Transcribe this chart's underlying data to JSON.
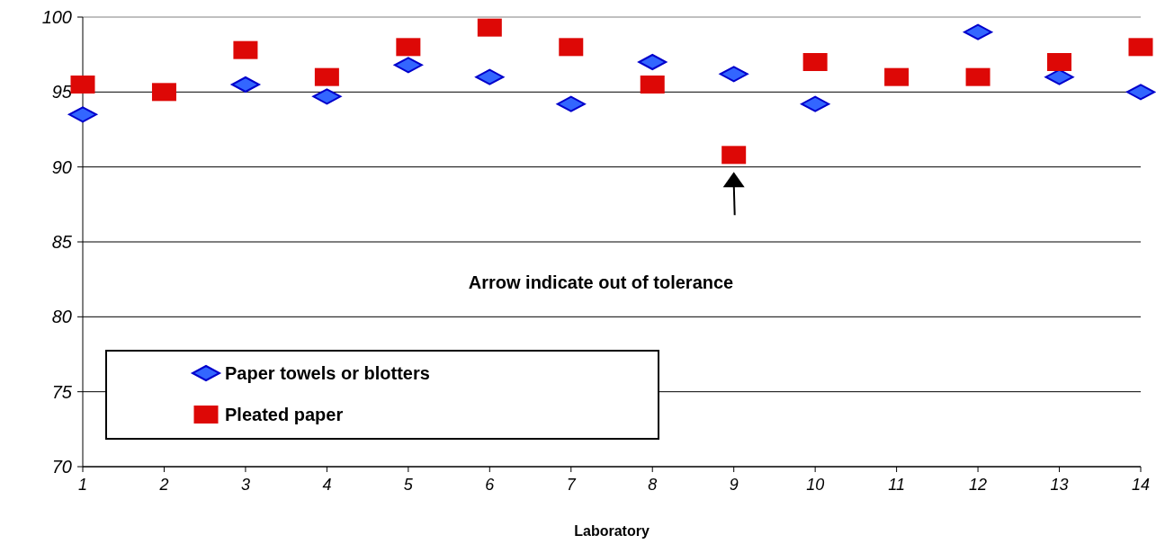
{
  "chart_data": {
    "type": "scatter",
    "xlabel": "Laboratory",
    "x": [
      1,
      2,
      3,
      4,
      5,
      6,
      7,
      8,
      9,
      10,
      11,
      12,
      13,
      14
    ],
    "xlim": [
      1,
      14
    ],
    "xticks": [
      1,
      2,
      3,
      4,
      5,
      6,
      7,
      8,
      9,
      10,
      11,
      12,
      13,
      14
    ],
    "ylim": [
      70,
      100
    ],
    "yticks": [
      70,
      75,
      80,
      85,
      90,
      95,
      100
    ],
    "grid": "y",
    "legend": "bottom left",
    "annotations": [
      "Arrow indicate out of tolerance"
    ],
    "series": [
      {
        "name": "Paper towels or blotters",
        "color": "#3366ff",
        "marker": "diamond",
        "values": [
          93.5,
          null,
          95.5,
          94.7,
          96.8,
          96,
          94.2,
          97,
          96.2,
          94.2,
          null,
          99,
          96,
          95
        ]
      },
      {
        "name": "Pleated paper",
        "color": "#dd0806",
        "marker": "square",
        "values": [
          95.5,
          95,
          97.8,
          96,
          98,
          99.3,
          98,
          95.5,
          90.8,
          97,
          96,
          96,
          97,
          98
        ]
      }
    ]
  }
}
